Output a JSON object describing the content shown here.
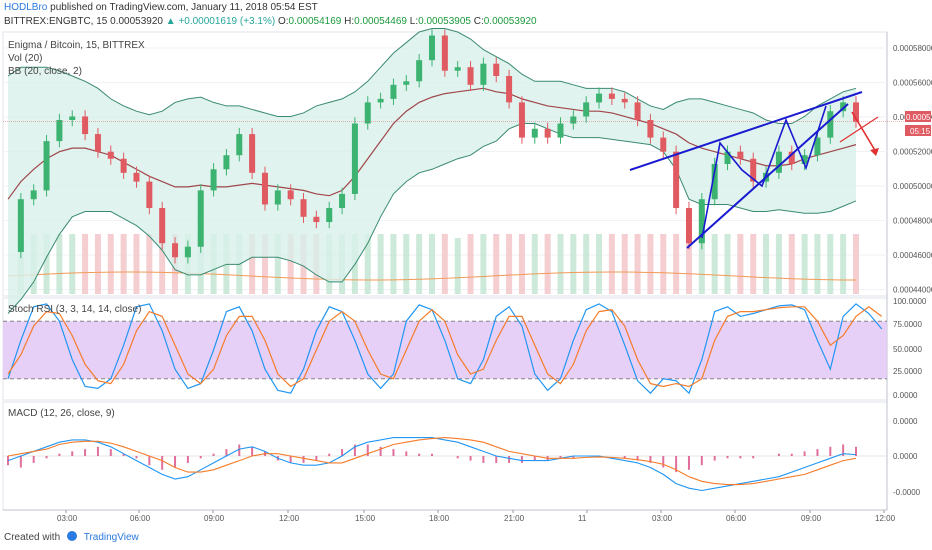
{
  "header": {
    "author": "HODLBro",
    "published": "published on TradingView.com, January 11, 2018 05:54 EST",
    "symbol": "BITTREX:ENGBTC, 15",
    "last": "0.00053920",
    "change": "▲ +0.00001619 (+3.1%)",
    "o_label": "O:",
    "o_value": "0.00054169",
    "h_label": "H:",
    "h_value": "0.00054469",
    "l_label": "L:",
    "l_value": "0.00053905",
    "c_label": "C:",
    "c_value": "0.00053920"
  },
  "panes": {
    "main_title": "Enigma / Bitcoin, 15, BITTREX",
    "vol_label": "Vol (20)",
    "bb_label": "BB (20, close, 2)",
    "rsi_label": "Stoch RSI (3, 3, 14, 14, close)",
    "macd_label": "MACD (12, 26, close, 9)"
  },
  "price_axis": [
    "0.00058000",
    "0.00056000",
    "0.00054000",
    "0.00052000",
    "0.00050000",
    "0.00048000",
    "0.00046000",
    "0.00044000"
  ],
  "price_badges": {
    "last": "0.00053920",
    "countdown": "05:15"
  },
  "rsi_axis": [
    "100.0000",
    "75.0000",
    "50.0000",
    "25.0000",
    "0.0000"
  ],
  "macd_axis": [
    "0.0000",
    "0.0000",
    "-0.0000"
  ],
  "time_axis": [
    "03:00",
    "06:00",
    "09:00",
    "12:00",
    "15:00",
    "18:00",
    "21:00",
    "11",
    "03:00",
    "06:00",
    "09:00",
    "12:00"
  ],
  "footer": {
    "created_with": "Created with",
    "brand": "TradingView"
  },
  "colors": {
    "up": "#3cb371",
    "down": "#e05a62",
    "bb_fill": "#d8f0ea",
    "bb_line": "#3a8a72",
    "bb_basis": "#a0464b",
    "rsi_fill": "#e3c8f7",
    "k_line": "#2196f3",
    "d_line": "#f57c2b",
    "pattern": "#1a1ad0",
    "arrow": "#e03030"
  },
  "chart_data": [
    {
      "type": "candlestick",
      "pane": "price",
      "ylim": [
        0.00044,
        0.00059
      ],
      "x": [
        "01:45",
        "02:00",
        "02:30",
        "03:00",
        "03:30",
        "04:00",
        "04:30",
        "05:00",
        "05:30",
        "06:00",
        "06:30",
        "07:00",
        "07:30",
        "08:00",
        "08:30",
        "09:00",
        "09:30",
        "10:00",
        "10:30",
        "11:00",
        "11:30",
        "12:00",
        "12:30",
        "13:00",
        "13:30",
        "14:00",
        "14:30",
        "15:00",
        "15:30",
        "16:00",
        "16:30",
        "17:00",
        "17:30",
        "18:00",
        "18:30",
        "19:00",
        "19:30",
        "20:00",
        "20:30",
        "21:00",
        "21:30",
        "22:00",
        "22:30",
        "23:00",
        "23:30",
        "00:00",
        "00:30",
        "01:00",
        "01:30",
        "02:00",
        "02:30",
        "03:00",
        "03:30",
        "04:00",
        "04:30",
        "05:00",
        "05:30",
        "06:00",
        "06:30",
        "07:00",
        "07:30",
        "08:00",
        "08:30",
        "09:00",
        "09:30",
        "10:00",
        "10:30"
      ],
      "close": [
        0.000465,
        0.000495,
        0.0005,
        0.000528,
        0.00054,
        0.000542,
        0.000532,
        0.000522,
        0.000518,
        0.00051,
        0.000505,
        0.00049,
        0.00047,
        0.000462,
        0.000468,
        0.0005,
        0.000512,
        0.00052,
        0.000532,
        0.00051,
        0.000492,
        0.0005,
        0.000495,
        0.000485,
        0.000482,
        0.00049,
        0.000498,
        0.000538,
        0.00055,
        0.000552,
        0.00056,
        0.000562,
        0.000574,
        0.000588,
        0.000568,
        0.00057,
        0.00056,
        0.000572,
        0.000565,
        0.00055,
        0.00053,
        0.000535,
        0.00053,
        0.000538,
        0.000542,
        0.00055,
        0.000555,
        0.000552,
        0.00055,
        0.00054,
        0.00053,
        0.000522,
        0.00049,
        0.00047,
        0.000495,
        0.000515,
        0.000522,
        0.000518,
        0.000505,
        0.00051,
        0.000522,
        0.000515,
        0.00052,
        0.00053,
        0.000545,
        0.00055,
        0.000539
      ],
      "bb_upper": [
        0.000565,
        0.00057,
        0.00057,
        0.00057,
        0.000568,
        0.000565,
        0.000562,
        0.000558,
        0.000552,
        0.000548,
        0.000545,
        0.000543,
        0.000545,
        0.00055,
        0.000552,
        0.000553,
        0.00055,
        0.000548,
        0.000548,
        0.000546,
        0.000544,
        0.000542,
        0.000542,
        0.000544,
        0.000548,
        0.00055,
        0.000552,
        0.000556,
        0.000562,
        0.00057,
        0.000578,
        0.000584,
        0.00059,
        0.000592,
        0.000592,
        0.00059,
        0.000586,
        0.00058,
        0.000576,
        0.000572,
        0.000566,
        0.000562,
        0.000562,
        0.000562,
        0.00056,
        0.000558,
        0.000558,
        0.000558,
        0.000556,
        0.000552,
        0.000548,
        0.000546,
        0.00055,
        0.000552,
        0.000552,
        0.00055,
        0.000548,
        0.000546,
        0.000544,
        0.00054,
        0.000538,
        0.000538,
        0.000542,
        0.000548,
        0.000552,
        0.000556,
        0.000558
      ],
      "bb_basis": [
        0.000495,
        0.000505,
        0.000512,
        0.000518,
        0.000522,
        0.000524,
        0.000524,
        0.000522,
        0.00052,
        0.000516,
        0.000512,
        0.000508,
        0.000505,
        0.000502,
        0.000502,
        0.000503,
        0.000502,
        0.000502,
        0.000503,
        0.000504,
        0.000503,
        0.000502,
        0.000501,
        0.0005,
        0.000498,
        0.000497,
        0.0005,
        0.000508,
        0.000518,
        0.000528,
        0.000538,
        0.000545,
        0.00055,
        0.000553,
        0.000555,
        0.000556,
        0.000557,
        0.000558,
        0.000556,
        0.000555,
        0.000552,
        0.00055,
        0.000548,
        0.000547,
        0.000546,
        0.000545,
        0.000545,
        0.000544,
        0.000542,
        0.00054,
        0.000538,
        0.000535,
        0.000532,
        0.000527,
        0.000524,
        0.000522,
        0.00052,
        0.000518,
        0.000516,
        0.000514,
        0.000514,
        0.000515,
        0.000518,
        0.00052,
        0.000522,
        0.000524,
        0.000526
      ],
      "bb_lower": [
        0.00043,
        0.000438,
        0.000448,
        0.000462,
        0.000475,
        0.000485,
        0.000488,
        0.000488,
        0.000488,
        0.000484,
        0.00048,
        0.000474,
        0.000466,
        0.000455,
        0.000452,
        0.000452,
        0.000455,
        0.000458,
        0.000458,
        0.000462,
        0.000462,
        0.000462,
        0.00046,
        0.000457,
        0.000452,
        0.000448,
        0.000448,
        0.000458,
        0.00047,
        0.000485,
        0.000498,
        0.000505,
        0.00051,
        0.000512,
        0.000515,
        0.000518,
        0.00052,
        0.000525,
        0.000528,
        0.000535,
        0.000538,
        0.000538,
        0.000535,
        0.000532,
        0.00053,
        0.00053,
        0.00053,
        0.000529,
        0.000528,
        0.000527,
        0.000526,
        0.000522,
        0.000512,
        0.000495,
        0.000492,
        0.000492,
        0.000492,
        0.00049,
        0.000488,
        0.000488,
        0.000489,
        0.000488,
        0.000487,
        0.000487,
        0.000488,
        0.000491,
        0.000494
      ]
    },
    {
      "type": "line",
      "pane": "stoch_rsi",
      "ylim": [
        0,
        100
      ],
      "series": [
        {
          "name": "K",
          "values": [
            20,
            60,
            95,
            98,
            80,
            40,
            12,
            10,
            20,
            55,
            95,
            98,
            70,
            30,
            10,
            15,
            50,
            90,
            95,
            70,
            30,
            8,
            5,
            30,
            70,
            95,
            90,
            60,
            25,
            10,
            25,
            80,
            97,
            92,
            60,
            20,
            15,
            40,
            85,
            95,
            75,
            25,
            8,
            20,
            60,
            92,
            98,
            90,
            55,
            18,
            5,
            20,
            18,
            5,
            40,
            90,
            95,
            85,
            88,
            92,
            96,
            97,
            92,
            60,
            30,
            85,
            98,
            88,
            72
          ]
        },
        {
          "name": "D",
          "values": [
            25,
            45,
            75,
            90,
            88,
            65,
            35,
            18,
            15,
            35,
            70,
            90,
            85,
            55,
            25,
            15,
            30,
            65,
            85,
            85,
            60,
            25,
            12,
            20,
            50,
            80,
            90,
            80,
            50,
            25,
            20,
            50,
            80,
            92,
            80,
            45,
            25,
            30,
            60,
            85,
            85,
            55,
            25,
            15,
            35,
            70,
            90,
            92,
            75,
            40,
            15,
            12,
            15,
            12,
            20,
            60,
            85,
            90,
            90,
            92,
            94,
            95,
            95,
            80,
            55,
            65,
            85,
            95,
            85
          ]
        }
      ]
    },
    {
      "type": "bar",
      "pane": "macd",
      "series": [
        {
          "name": "histogram",
          "values": [
            -2,
            -2.5,
            -1.5,
            -0.5,
            0.5,
            1,
            1.5,
            2,
            1.5,
            0.5,
            -0.5,
            -2,
            -3,
            -2.5,
            -1.5,
            -0.5,
            0.5,
            1.5,
            2.5,
            2,
            1,
            -1,
            -1.5,
            -1.5,
            -1,
            0.5,
            1.5,
            2.5,
            2.5,
            2,
            1.5,
            1,
            0.5,
            0.5,
            0,
            -0.5,
            -1,
            -1.5,
            -1.5,
            -1.5,
            -1.5,
            -1,
            -1,
            -0.5,
            -0.5,
            0,
            0,
            0,
            -0.5,
            -1,
            -1.5,
            -2.5,
            -3.5,
            -3,
            -2,
            -1,
            -0.5,
            -0.5,
            -0.5,
            0,
            0.5,
            0.5,
            1,
            1.5,
            2,
            2.5,
            2
          ]
        },
        {
          "name": "MACD",
          "values": [
            -1,
            0,
            1,
            2,
            3,
            3.5,
            3.5,
            3,
            2,
            0.5,
            -1,
            -2.5,
            -4,
            -5,
            -4.5,
            -3,
            -1.5,
            0,
            1.5,
            2,
            1,
            -0.5,
            -1.5,
            -2,
            -2,
            -1.5,
            0,
            2,
            3,
            3.5,
            4,
            4,
            4,
            4,
            3.5,
            3,
            2,
            1,
            0,
            -0.5,
            -1,
            -1,
            -1,
            -0.5,
            0,
            0,
            0,
            -0.5,
            -1,
            -1.5,
            -2.5,
            -4,
            -6,
            -7,
            -7.5,
            -7,
            -6.5,
            -6,
            -5.5,
            -5,
            -4.5,
            -3.5,
            -2.5,
            -1.5,
            -0.5,
            0.5,
            0.3
          ]
        },
        {
          "name": "Signal",
          "values": [
            0,
            0.5,
            1,
            1.5,
            2.5,
            3,
            3.2,
            3.2,
            2.8,
            2,
            1,
            0,
            -1,
            -2.5,
            -3.5,
            -3.5,
            -3,
            -2,
            -1,
            0,
            0.5,
            0.5,
            0,
            -0.5,
            -1,
            -1.5,
            -1.5,
            -0.5,
            0.5,
            1.5,
            2.5,
            3,
            3.5,
            3.8,
            4,
            3.8,
            3.5,
            3,
            2,
            1,
            0.5,
            0,
            -0.5,
            -0.5,
            -0.5,
            -0.3,
            -0.2,
            -0.3,
            -0.5,
            -0.8,
            -1.2,
            -1.8,
            -3,
            -4.5,
            -5.5,
            -6,
            -6.2,
            -6.2,
            -6,
            -5.5,
            -5,
            -4.5,
            -4,
            -3,
            -2,
            -1,
            -0.5
          ]
        }
      ]
    }
  ]
}
